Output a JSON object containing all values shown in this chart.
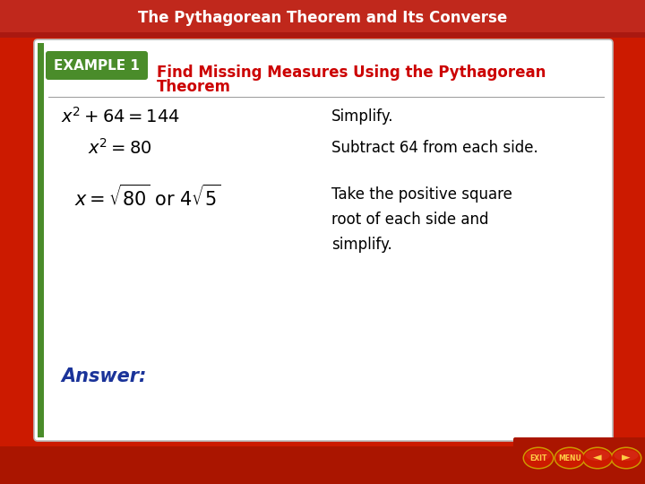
{
  "title_bar_color": "#c0281c",
  "title_text": "The Pythagorean Theorem and Its Converse",
  "title_text_color": "#ffffff",
  "title_fontsize": 12,
  "bg_color_top": "#b01010",
  "bg_color": "#cc1a00",
  "slide_bg_color": "#ffffff",
  "example_tab_color": "#4a8c2a",
  "example_tab_text": "EXAMPLE 1",
  "example_tab_text_color": "#ffffff",
  "example_tab_fontsize": 11,
  "heading_text_line1": "Find Missing Measures Using the Pythagorean",
  "heading_text_line2": "Theorem",
  "heading_color": "#cc0000",
  "heading_fontsize": 12,
  "line1_right": "Simplify.",
  "line2_right": "Subtract 64 from each side.",
  "line3_right": "Take the positive square\nroot of each side and\nsimplify.",
  "answer_text": "Answer:",
  "answer_color": "#1a3399",
  "answer_fontsize": 15,
  "math_fontsize": 14,
  "desc_fontsize": 12,
  "left_green_bar_color": "#4a8c2a",
  "nav_button_color": "#cc1a00",
  "nav_button_border": "#cc9900",
  "nav_button_text_color": "#ffcc44"
}
